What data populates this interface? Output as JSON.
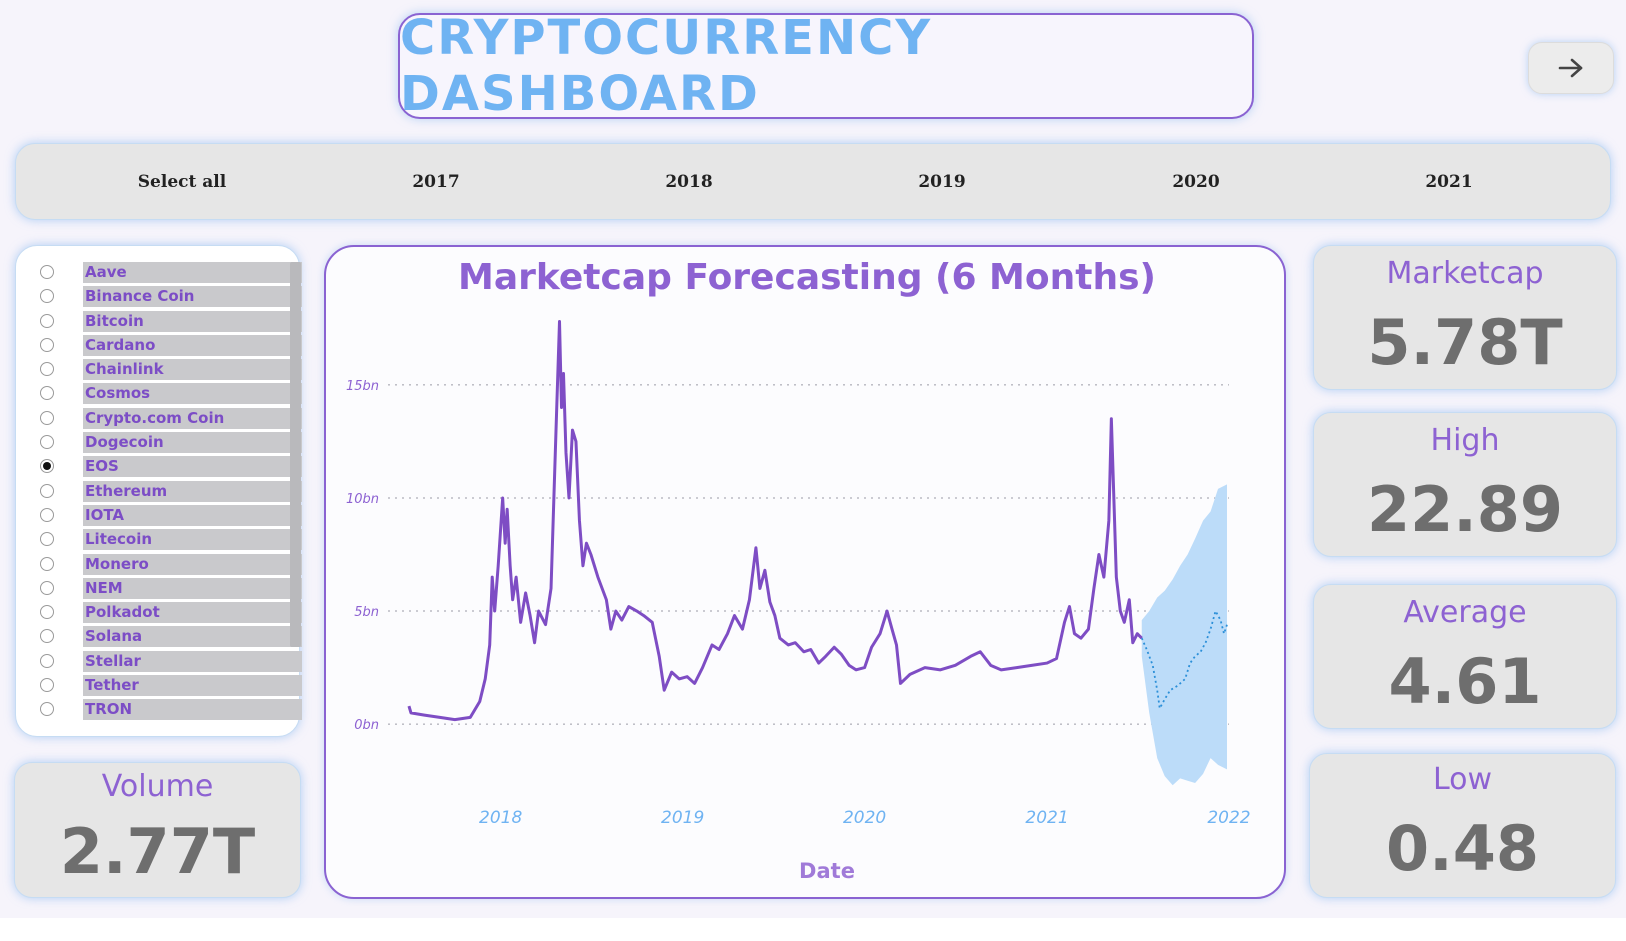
{
  "header": {
    "title": "CRYPTOCURRENCY DASHBOARD",
    "nav_icon": "arrow-right-icon"
  },
  "year_filter": {
    "items": [
      "Select all",
      "2017",
      "2018",
      "2019",
      "2020",
      "2021"
    ]
  },
  "coin_filter": {
    "selected": "EOS",
    "items": [
      "Aave",
      "Binance Coin",
      "Bitcoin",
      "Cardano",
      "Chainlink",
      "Cosmos",
      "Crypto.com Coin",
      "Dogecoin",
      "EOS",
      "Ethereum",
      "IOTA",
      "Litecoin",
      "Monero",
      "NEM",
      "Polkadot",
      "Solana",
      "Stellar",
      "Tether",
      "TRON"
    ]
  },
  "kpis": {
    "volume": {
      "label": "Volume",
      "value": "2.77T"
    },
    "marketcap": {
      "label": "Marketcap",
      "value": "5.78T"
    },
    "high": {
      "label": "High",
      "value": "22.89"
    },
    "average": {
      "label": "Average",
      "value": "4.61"
    },
    "low": {
      "label": "Low",
      "value": "0.48"
    }
  },
  "colors": {
    "series": "#7e4dc4",
    "forecast": "#2b8fd8",
    "band": "#bcdcf9",
    "accent": "#8d62d2",
    "title": "#6fb3f2"
  },
  "chart_data": {
    "type": "line",
    "title": "Marketcap Forecasting (6 Months)",
    "xlabel": "Date",
    "ylabel": "",
    "x_ticks": [
      "2018",
      "2019",
      "2020",
      "2021",
      "2022"
    ],
    "y_ticks": [
      "0bn",
      "5bn",
      "10bn",
      "15bn"
    ],
    "ylim": [
      -3,
      18
    ],
    "grid": true,
    "series": [
      {
        "role": "actual",
        "points": [
          [
            "2017-07-01",
            0.8
          ],
          [
            "2017-07-05",
            0.5
          ],
          [
            "2017-08-01",
            0.4
          ],
          [
            "2017-09-01",
            0.3
          ],
          [
            "2017-10-01",
            0.2
          ],
          [
            "2017-11-01",
            0.3
          ],
          [
            "2017-11-20",
            1.0
          ],
          [
            "2017-12-01",
            2.0
          ],
          [
            "2017-12-10",
            3.5
          ],
          [
            "2017-12-15",
            6.5
          ],
          [
            "2017-12-20",
            5.0
          ],
          [
            "2017-12-27",
            7.0
          ],
          [
            "2018-01-05",
            10.0
          ],
          [
            "2018-01-10",
            8.0
          ],
          [
            "2018-01-14",
            9.5
          ],
          [
            "2018-01-20",
            7.0
          ],
          [
            "2018-01-25",
            5.5
          ],
          [
            "2018-02-01",
            6.5
          ],
          [
            "2018-02-10",
            4.5
          ],
          [
            "2018-02-20",
            5.8
          ],
          [
            "2018-03-01",
            4.8
          ],
          [
            "2018-03-10",
            3.6
          ],
          [
            "2018-03-18",
            5.0
          ],
          [
            "2018-04-01",
            4.4
          ],
          [
            "2018-04-12",
            6.0
          ],
          [
            "2018-04-22",
            13.0
          ],
          [
            "2018-04-29",
            17.8
          ],
          [
            "2018-05-03",
            14.0
          ],
          [
            "2018-05-07",
            15.5
          ],
          [
            "2018-05-12",
            12.0
          ],
          [
            "2018-05-18",
            10.0
          ],
          [
            "2018-05-25",
            13.0
          ],
          [
            "2018-06-01",
            12.5
          ],
          [
            "2018-06-08",
            9.0
          ],
          [
            "2018-06-15",
            7.0
          ],
          [
            "2018-06-22",
            8.0
          ],
          [
            "2018-07-01",
            7.5
          ],
          [
            "2018-07-15",
            6.5
          ],
          [
            "2018-08-01",
            5.5
          ],
          [
            "2018-08-10",
            4.2
          ],
          [
            "2018-08-20",
            5.0
          ],
          [
            "2018-09-01",
            4.6
          ],
          [
            "2018-09-15",
            5.2
          ],
          [
            "2018-10-01",
            5.0
          ],
          [
            "2018-10-15",
            4.8
          ],
          [
            "2018-11-01",
            4.5
          ],
          [
            "2018-11-15",
            3.0
          ],
          [
            "2018-11-25",
            1.5
          ],
          [
            "2018-12-10",
            2.3
          ],
          [
            "2018-12-25",
            2.0
          ],
          [
            "2019-01-10",
            2.1
          ],
          [
            "2019-01-25",
            1.8
          ],
          [
            "2019-02-10",
            2.5
          ],
          [
            "2019-03-01",
            3.5
          ],
          [
            "2019-03-15",
            3.3
          ],
          [
            "2019-04-01",
            4.0
          ],
          [
            "2019-04-15",
            4.8
          ],
          [
            "2019-05-01",
            4.2
          ],
          [
            "2019-05-15",
            5.5
          ],
          [
            "2019-05-28",
            7.8
          ],
          [
            "2019-06-05",
            6.0
          ],
          [
            "2019-06-15",
            6.8
          ],
          [
            "2019-06-25",
            5.4
          ],
          [
            "2019-07-05",
            4.8
          ],
          [
            "2019-07-15",
            3.8
          ],
          [
            "2019-08-01",
            3.5
          ],
          [
            "2019-08-15",
            3.6
          ],
          [
            "2019-09-01",
            3.2
          ],
          [
            "2019-09-15",
            3.3
          ],
          [
            "2019-10-01",
            2.7
          ],
          [
            "2019-10-15",
            3.0
          ],
          [
            "2019-11-01",
            3.4
          ],
          [
            "2019-11-15",
            3.1
          ],
          [
            "2019-12-01",
            2.6
          ],
          [
            "2019-12-15",
            2.4
          ],
          [
            "2020-01-01",
            2.5
          ],
          [
            "2020-01-15",
            3.4
          ],
          [
            "2020-02-01",
            4.0
          ],
          [
            "2020-02-15",
            5.0
          ],
          [
            "2020-02-25",
            4.2
          ],
          [
            "2020-03-05",
            3.5
          ],
          [
            "2020-03-13",
            1.8
          ],
          [
            "2020-04-01",
            2.2
          ],
          [
            "2020-05-01",
            2.5
          ],
          [
            "2020-06-01",
            2.4
          ],
          [
            "2020-07-01",
            2.6
          ],
          [
            "2020-08-01",
            3.0
          ],
          [
            "2020-08-20",
            3.2
          ],
          [
            "2020-09-10",
            2.6
          ],
          [
            "2020-10-01",
            2.4
          ],
          [
            "2020-11-01",
            2.5
          ],
          [
            "2020-12-01",
            2.6
          ],
          [
            "2021-01-01",
            2.7
          ],
          [
            "2021-01-20",
            2.9
          ],
          [
            "2021-02-05",
            4.5
          ],
          [
            "2021-02-15",
            5.2
          ],
          [
            "2021-02-25",
            4.0
          ],
          [
            "2021-03-10",
            3.8
          ],
          [
            "2021-03-25",
            4.2
          ],
          [
            "2021-04-05",
            6.0
          ],
          [
            "2021-04-15",
            7.5
          ],
          [
            "2021-04-25",
            6.5
          ],
          [
            "2021-05-05",
            9.0
          ],
          [
            "2021-05-10",
            13.5
          ],
          [
            "2021-05-15",
            10.0
          ],
          [
            "2021-05-20",
            6.5
          ],
          [
            "2021-05-28",
            5.0
          ],
          [
            "2021-06-05",
            4.5
          ],
          [
            "2021-06-15",
            5.5
          ],
          [
            "2021-06-22",
            3.6
          ],
          [
            "2021-07-01",
            4.0
          ],
          [
            "2021-07-10",
            3.8
          ]
        ]
      },
      {
        "role": "forecast",
        "points": [
          [
            "2021-07-10",
            3.8
          ],
          [
            "2021-07-20",
            3.3
          ],
          [
            "2021-08-01",
            2.6
          ],
          [
            "2021-08-10",
            1.5
          ],
          [
            "2021-08-15",
            0.7
          ],
          [
            "2021-08-25",
            1.1
          ],
          [
            "2021-09-05",
            1.5
          ],
          [
            "2021-09-20",
            1.7
          ],
          [
            "2021-10-05",
            2.0
          ],
          [
            "2021-10-15",
            2.7
          ],
          [
            "2021-10-25",
            3.0
          ],
          [
            "2021-11-05",
            3.2
          ],
          [
            "2021-11-15",
            3.6
          ],
          [
            "2021-11-25",
            4.2
          ],
          [
            "2021-12-05",
            5.0
          ],
          [
            "2021-12-15",
            4.6
          ],
          [
            "2021-12-22",
            4.0
          ],
          [
            "2021-12-28",
            4.4
          ]
        ]
      }
    ],
    "band": {
      "upper": [
        [
          "2021-07-10",
          4.6
        ],
        [
          "2021-07-25",
          5.0
        ],
        [
          "2021-08-10",
          5.6
        ],
        [
          "2021-08-25",
          5.9
        ],
        [
          "2021-09-10",
          6.4
        ],
        [
          "2021-09-25",
          7.0
        ],
        [
          "2021-10-10",
          7.5
        ],
        [
          "2021-10-25",
          8.2
        ],
        [
          "2021-11-10",
          9.0
        ],
        [
          "2021-11-25",
          9.4
        ],
        [
          "2021-12-10",
          10.4
        ],
        [
          "2021-12-28",
          10.6
        ]
      ],
      "lower": [
        [
          "2021-07-10",
          3.0
        ],
        [
          "2021-07-25",
          0.5
        ],
        [
          "2021-08-10",
          -1.5
        ],
        [
          "2021-08-25",
          -2.3
        ],
        [
          "2021-09-10",
          -2.7
        ],
        [
          "2021-09-25",
          -2.4
        ],
        [
          "2021-10-10",
          -2.5
        ],
        [
          "2021-10-25",
          -2.6
        ],
        [
          "2021-11-10",
          -2.2
        ],
        [
          "2021-11-25",
          -1.5
        ],
        [
          "2021-12-10",
          -1.8
        ],
        [
          "2021-12-28",
          -2.0
        ]
      ]
    }
  }
}
